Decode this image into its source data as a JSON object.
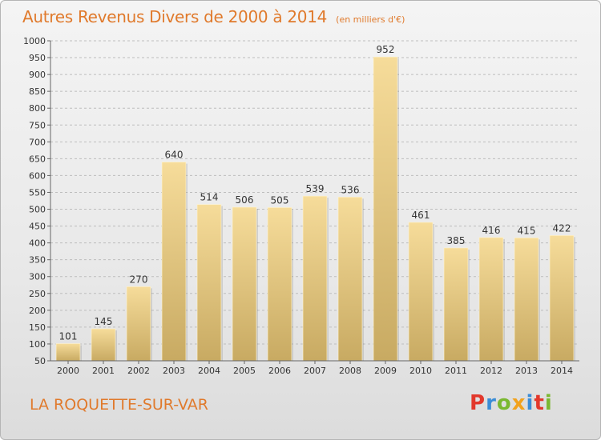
{
  "header": {
    "title": "Autres Revenus Divers de 2000 à 2014",
    "subtitle": "(en milliers d'€)"
  },
  "footer": {
    "place": "LA ROQUETTE-SUR-VAR",
    "logo_text": "Proxiti",
    "logo_colors": [
      "#e2382c",
      "#3b8dd6",
      "#7ab830",
      "#f2a21d",
      "#3b8dd6",
      "#e2382c",
      "#7ab830"
    ]
  },
  "colors": {
    "bar_light": "#f6dc9a",
    "bar_dark": "#c8aa62",
    "grid": "#bdbdbd",
    "text": "#333333",
    "accent": "#e07a2c"
  },
  "chart_data": {
    "type": "bar",
    "categories": [
      "2000",
      "2001",
      "2002",
      "2003",
      "2004",
      "2005",
      "2006",
      "2007",
      "2008",
      "2009",
      "2010",
      "2011",
      "2012",
      "2013",
      "2014"
    ],
    "values": [
      101,
      145,
      270,
      640,
      514,
      506,
      505,
      539,
      536,
      952,
      461,
      385,
      416,
      415,
      422
    ],
    "ylim": [
      50,
      1000
    ],
    "yticks": [
      50,
      100,
      150,
      200,
      250,
      300,
      350,
      400,
      450,
      500,
      550,
      600,
      650,
      700,
      750,
      800,
      850,
      900,
      950,
      1000
    ],
    "grid": true,
    "title": "Autres Revenus Divers de 2000 à 2014",
    "xlabel": "",
    "ylabel": ""
  }
}
